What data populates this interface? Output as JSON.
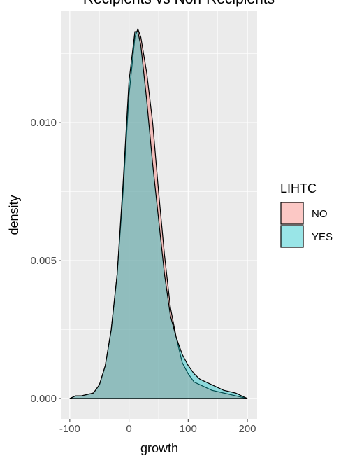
{
  "chart_data": {
    "type": "area",
    "title": "Recipients vs Non-Recipients",
    "x_label": "growth",
    "y_label": "density",
    "legend_title": "LIHTC",
    "x": [
      -100,
      -90,
      -80,
      -60,
      -50,
      -40,
      -30,
      -20,
      -10,
      0,
      10,
      15,
      20,
      30,
      40,
      50,
      60,
      70,
      80,
      90,
      100,
      110,
      120,
      140,
      160,
      180,
      200
    ],
    "series": [
      {
        "name": "NO",
        "color": "#F8766D",
        "values": [
          0,
          0.0001,
          0.0001,
          0.0002,
          0.0005,
          0.0012,
          0.0025,
          0.0045,
          0.0075,
          0.011,
          0.0131,
          0.0134,
          0.0131,
          0.0118,
          0.01,
          0.0075,
          0.0052,
          0.0033,
          0.0022,
          0.0013,
          0.0009,
          0.0006,
          0.0005,
          0.0003,
          0.0002,
          0.0001,
          0
        ]
      },
      {
        "name": "YES",
        "color": "#00BFC4",
        "values": [
          0,
          0.0001,
          0.0001,
          0.0002,
          0.0005,
          0.0012,
          0.0025,
          0.0045,
          0.0078,
          0.0115,
          0.0133,
          0.0133,
          0.0128,
          0.0108,
          0.0085,
          0.0065,
          0.0045,
          0.003,
          0.0022,
          0.0016,
          0.0012,
          0.0009,
          0.0007,
          0.0005,
          0.0003,
          0.0002,
          0
        ]
      }
    ],
    "xlim": [
      -114,
      216.5
    ],
    "xticks": [
      -100,
      0,
      100,
      200
    ],
    "ylim": [
      -0.000736,
      0.01404
    ],
    "yticks": [
      {
        "value": 0,
        "label": "0.000"
      },
      {
        "value": 0.005,
        "label": "0.005"
      },
      {
        "value": 0.01,
        "label": "0.010"
      }
    ],
    "grid": true,
    "legend": "right"
  }
}
